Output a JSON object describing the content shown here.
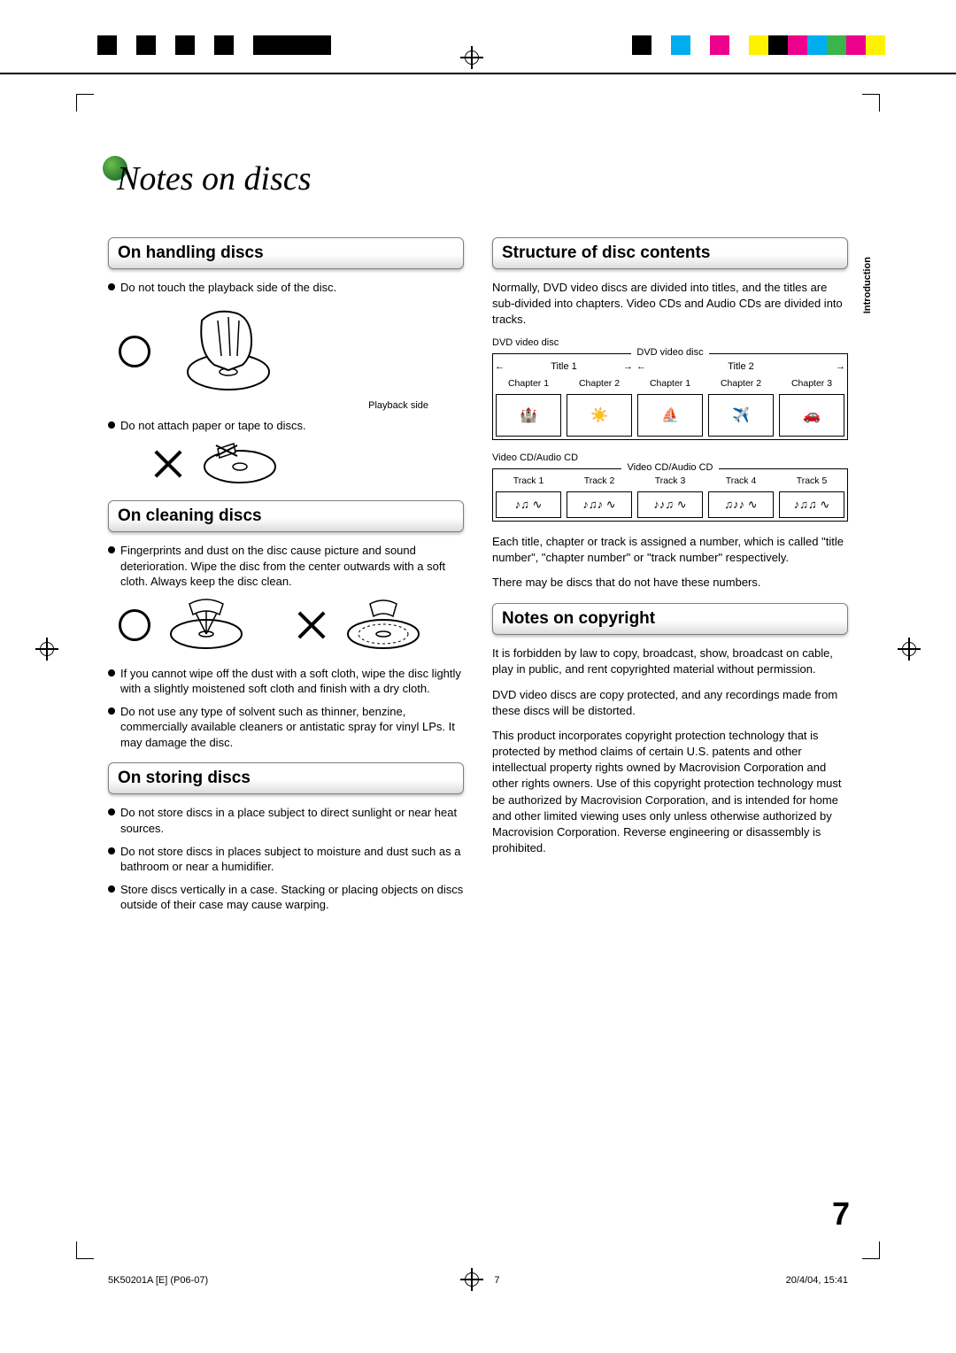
{
  "page": {
    "title": "Notes on discs",
    "page_number": "7",
    "side_tab": "Introduction"
  },
  "registration": {
    "left_blocks": [
      "#000000",
      "#ffffff",
      "#000000",
      "#ffffff",
      "#000000",
      "#ffffff",
      "#000000",
      "#ffffff",
      "#000000",
      "#000000",
      "#000000",
      "#000000"
    ],
    "right_colors": [
      "#000000",
      "#ffffff",
      "#00aeef",
      "#ffffff",
      "#ec008c",
      "#ffffff",
      "#fff200",
      "#000000",
      "#ec008c",
      "#00aeef",
      "#39b54a",
      "#ec008c",
      "#fff200"
    ]
  },
  "left_column": {
    "handling": {
      "title": "On handling discs",
      "bullets": [
        "Do not touch the playback side of the disc.",
        "Do not attach paper or tape to discs."
      ],
      "caption_playback": "Playback side"
    },
    "cleaning": {
      "title": "On cleaning discs",
      "bullets": [
        "Fingerprints and dust on the disc cause picture and sound deterioration. Wipe the disc from the center outwards with a soft cloth. Always keep the disc clean.",
        "If you cannot wipe off the dust with a soft cloth, wipe the disc lightly with a slightly moistened soft cloth and finish with a dry cloth.",
        "Do not use any type of solvent such as thinner, benzine, commercially available cleaners or antistatic spray for vinyl LPs. It may damage the disc."
      ]
    },
    "storing": {
      "title": "On storing discs",
      "bullets": [
        "Do not store discs in a place subject to direct sunlight or near heat sources.",
        "Do not store discs in places subject to moisture and dust such as a bathroom or near a humidifier.",
        "Store discs vertically in a case. Stacking or placing objects on discs outside of their case may cause warping."
      ]
    }
  },
  "right_column": {
    "structure": {
      "title": "Structure of disc contents",
      "intro": "Normally, DVD video discs are divided into titles, and the titles are sub-divided into chapters. Video CDs and Audio CDs are divided into tracks.",
      "dvd_label": "DVD video disc",
      "dvd_box_label": "DVD video disc",
      "titles": [
        "Title 1",
        "Title 2"
      ],
      "chapters_t1": [
        "Chapter 1",
        "Chapter 2"
      ],
      "chapters_t2": [
        "Chapter 1",
        "Chapter 2",
        "Chapter 3"
      ],
      "vcd_label": "Video CD/Audio CD",
      "vcd_box_label": "Video CD/Audio CD",
      "tracks": [
        "Track 1",
        "Track 2",
        "Track 3",
        "Track 4",
        "Track 5"
      ],
      "para1": "Each title, chapter or track is assigned a number, which is called \"title number\", \"chapter number\" or \"track number\" respectively.",
      "para2": "There may be discs that do not have these numbers."
    },
    "copyright": {
      "title": "Notes on copyright",
      "para1": "It is forbidden by law to copy, broadcast, show, broadcast on cable, play in public, and rent copyrighted material without permission.",
      "para2": "DVD video discs are copy protected, and any recordings made from these discs will be distorted.",
      "para3": "This product incorporates copyright protection technology that is protected by method claims of certain U.S. patents and other intellectual property rights owned by Macrovision Corporation and other rights owners. Use of this copyright protection technology must be authorized by Macrovision Corporation, and is intended for home and other limited viewing uses only unless otherwise authorized by Macrovision Corporation. Reverse engineering or disassembly is prohibited."
    }
  },
  "footer": {
    "left": "5K50201A [E] (P06-07)",
    "mid": "7",
    "right": "20/4/04, 15:41"
  }
}
